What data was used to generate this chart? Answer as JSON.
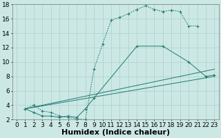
{
  "xlabel": "Humidex (Indice chaleur)",
  "background_color": "#cce8e5",
  "grid_color": "#aacfcc",
  "line_color": "#1a7a6e",
  "xlim": [
    -0.5,
    23.5
  ],
  "ylim": [
    2,
    18
  ],
  "xticks": [
    0,
    1,
    2,
    3,
    4,
    5,
    6,
    7,
    8,
    9,
    10,
    11,
    12,
    13,
    14,
    15,
    16,
    17,
    18,
    19,
    20,
    21,
    22,
    23
  ],
  "yticks": [
    2,
    4,
    6,
    8,
    10,
    12,
    14,
    16,
    18
  ],
  "line1_x": [
    1,
    2,
    3,
    4,
    5,
    6,
    7,
    8,
    9,
    10,
    11,
    12,
    13,
    14,
    15,
    16,
    17,
    18,
    19,
    20,
    21
  ],
  "line1_y": [
    3.5,
    4.0,
    3.2,
    3.0,
    2.5,
    2.3,
    2.1,
    2.0,
    9.0,
    12.5,
    15.8,
    16.2,
    16.7,
    17.3,
    17.8,
    17.3,
    17.0,
    17.2,
    17.0,
    15.0,
    15.0
  ],
  "line2_x": [
    1,
    2,
    3,
    4,
    5,
    6,
    7,
    8,
    9,
    14,
    17,
    20,
    22,
    23
  ],
  "line2_y": [
    3.5,
    3.0,
    2.5,
    2.5,
    2.3,
    2.5,
    2.3,
    3.5,
    5.0,
    12.2,
    12.2,
    10.0,
    8.0,
    8.2
  ],
  "line3_x": [
    1,
    23
  ],
  "line3_y": [
    3.5,
    9.0
  ],
  "line4_x": [
    1,
    23
  ],
  "line4_y": [
    3.5,
    8.0
  ],
  "xlabel_fontsize": 8,
  "tick_fontsize": 6.5
}
